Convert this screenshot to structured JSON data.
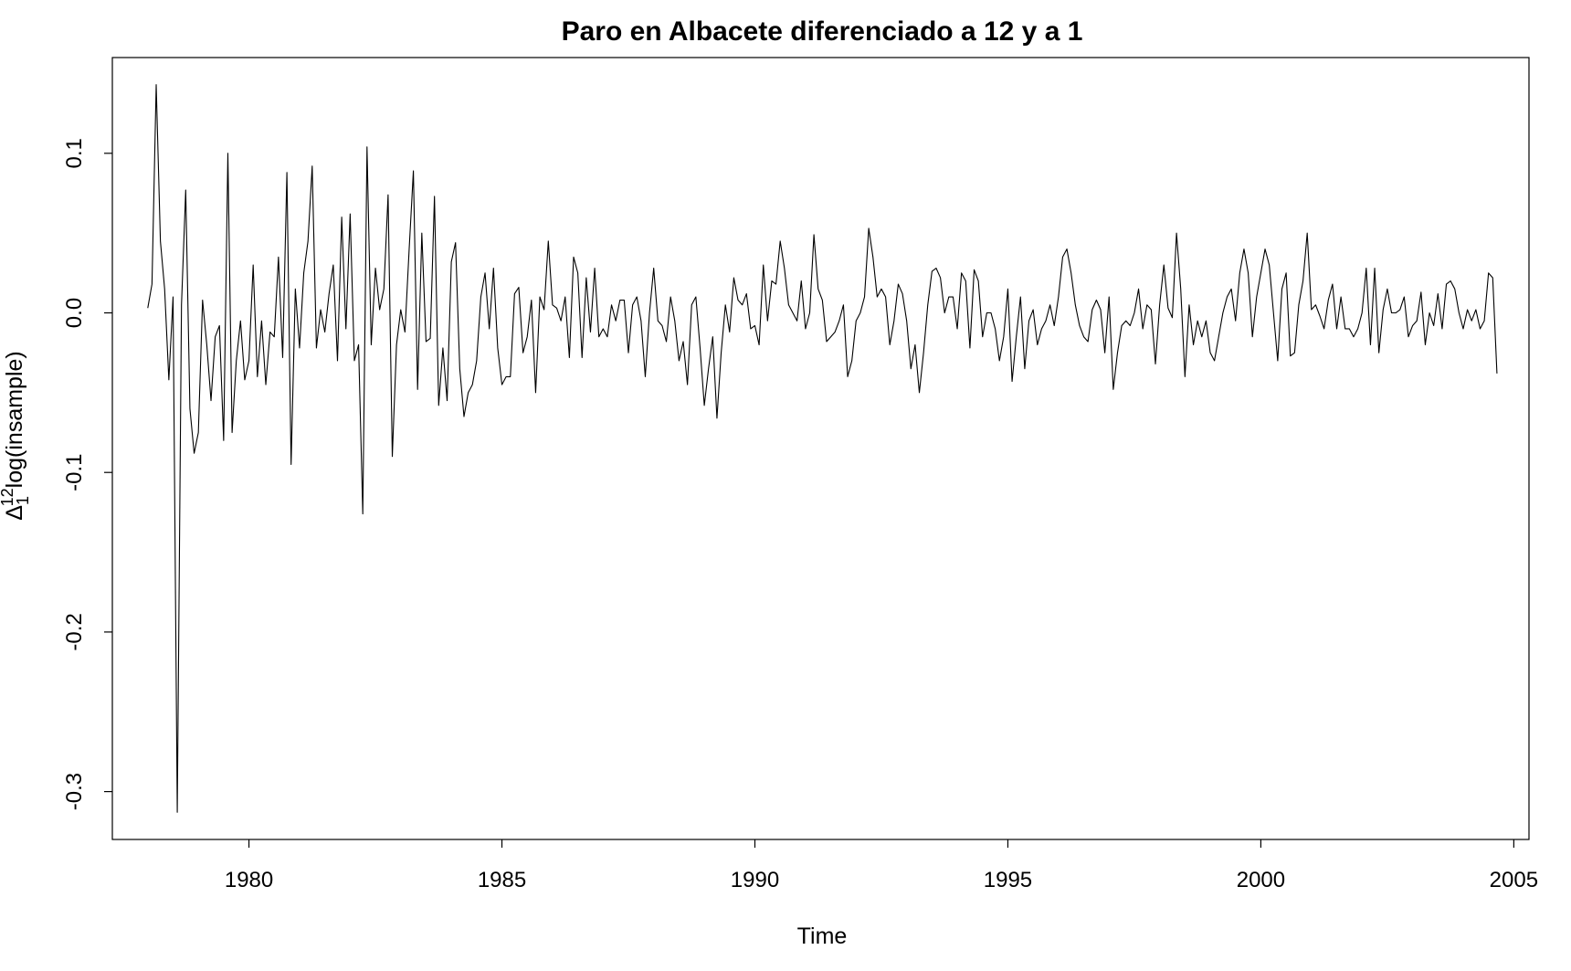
{
  "chart_data": {
    "type": "line",
    "title": "Paro en Albacete diferenciado a 12 y a 1",
    "xlabel": "Time",
    "ylabel": {
      "prefix": "Δ",
      "sub": "1",
      "sup": "12",
      "rest": "log(insample)"
    },
    "xlim": [
      1977.3,
      2005.3
    ],
    "ylim": [
      -0.33,
      0.16
    ],
    "x_ticks": [
      1980,
      1985,
      1990,
      1995,
      2000,
      2005
    ],
    "x_tick_labels": [
      "1980",
      "1985",
      "1990",
      "1995",
      "2000",
      "2005"
    ],
    "y_ticks": [
      -0.3,
      -0.2,
      -0.1,
      0.0,
      0.1
    ],
    "y_tick_labels": [
      "-0.3",
      "-0.2",
      "-0.1",
      "0.0",
      "0.1"
    ],
    "grid": false,
    "series": [
      {
        "line_color": "#000000",
        "start": 1978.0,
        "frequency": 12,
        "values": [
          0.003,
          0.018,
          0.143,
          0.045,
          0.015,
          -0.042,
          0.01,
          -0.313,
          0.005,
          0.077,
          -0.06,
          -0.088,
          -0.075,
          0.008,
          -0.02,
          -0.055,
          -0.015,
          -0.008,
          -0.08,
          0.1,
          -0.075,
          -0.03,
          -0.005,
          -0.042,
          -0.03,
          0.03,
          -0.04,
          -0.005,
          -0.045,
          -0.012,
          -0.015,
          0.035,
          -0.028,
          0.088,
          -0.095,
          0.015,
          -0.022,
          0.025,
          0.045,
          0.092,
          -0.022,
          0.002,
          -0.012,
          0.012,
          0.03,
          -0.03,
          0.06,
          -0.01,
          0.062,
          -0.03,
          -0.02,
          -0.126,
          0.104,
          -0.02,
          0.028,
          0.002,
          0.015,
          0.074,
          -0.09,
          -0.02,
          0.002,
          -0.012,
          0.04,
          0.089,
          -0.048,
          0.05,
          -0.018,
          -0.016,
          0.073,
          -0.058,
          -0.022,
          -0.055,
          0.032,
          0.044,
          -0.035,
          -0.065,
          -0.05,
          -0.045,
          -0.03,
          0.01,
          0.025,
          -0.01,
          0.028,
          -0.022,
          -0.045,
          -0.04,
          -0.04,
          0.012,
          0.016,
          -0.025,
          -0.015,
          0.008,
          -0.05,
          0.01,
          0.002,
          0.045,
          0.005,
          0.003,
          -0.005,
          0.01,
          -0.028,
          0.035,
          0.025,
          -0.028,
          0.022,
          -0.012,
          0.028,
          -0.015,
          -0.01,
          -0.015,
          0.005,
          -0.005,
          0.008,
          0.008,
          -0.025,
          0.005,
          0.01,
          -0.005,
          -0.04,
          0.0,
          0.028,
          -0.005,
          -0.008,
          -0.018,
          0.01,
          -0.005,
          -0.03,
          -0.018,
          -0.045,
          0.005,
          0.01,
          -0.022,
          -0.058,
          -0.035,
          -0.015,
          -0.066,
          -0.025,
          0.005,
          -0.012,
          0.022,
          0.008,
          0.005,
          0.012,
          -0.01,
          -0.008,
          -0.02,
          0.03,
          -0.005,
          0.02,
          0.018,
          0.045,
          0.028,
          0.005,
          0.0,
          -0.005,
          0.02,
          -0.01,
          0.0,
          0.049,
          0.015,
          0.008,
          -0.018,
          -0.015,
          -0.012,
          -0.005,
          0.005,
          -0.04,
          -0.03,
          -0.005,
          0.0,
          0.01,
          0.053,
          0.035,
          0.01,
          0.015,
          0.01,
          -0.02,
          -0.005,
          0.018,
          0.012,
          -0.005,
          -0.035,
          -0.02,
          -0.05,
          -0.025,
          0.005,
          0.026,
          0.028,
          0.022,
          0.0,
          0.01,
          0.01,
          -0.01,
          0.025,
          0.02,
          -0.022,
          0.027,
          0.02,
          -0.015,
          0.0,
          0.0,
          -0.01,
          -0.03,
          -0.015,
          0.015,
          -0.043,
          -0.015,
          0.01,
          -0.035,
          -0.005,
          0.002,
          -0.02,
          -0.01,
          -0.005,
          0.005,
          -0.008,
          0.01,
          0.035,
          0.04,
          0.025,
          0.005,
          -0.008,
          -0.015,
          -0.018,
          0.002,
          0.008,
          0.002,
          -0.025,
          0.01,
          -0.048,
          -0.025,
          -0.008,
          -0.005,
          -0.008,
          0.0,
          0.015,
          -0.01,
          0.005,
          0.002,
          -0.032,
          0.005,
          0.03,
          0.003,
          -0.003,
          0.05,
          0.015,
          -0.04,
          0.005,
          -0.02,
          -0.005,
          -0.015,
          -0.005,
          -0.025,
          -0.03,
          -0.015,
          0.0,
          0.01,
          0.015,
          -0.005,
          0.025,
          0.04,
          0.025,
          -0.015,
          0.01,
          0.025,
          0.04,
          0.03,
          0.0,
          -0.03,
          0.015,
          0.025,
          -0.027,
          -0.025,
          0.005,
          0.02,
          0.05,
          0.002,
          0.005,
          -0.002,
          -0.01,
          0.008,
          0.018,
          -0.01,
          0.01,
          -0.01,
          -0.01,
          -0.015,
          -0.01,
          0.0,
          0.028,
          -0.02,
          0.028,
          -0.025,
          0.002,
          0.015,
          0.0,
          0.0,
          0.002,
          0.01,
          -0.015,
          -0.008,
          -0.005,
          0.013,
          -0.02,
          0.0,
          -0.008,
          0.012,
          -0.01,
          0.018,
          0.02,
          0.015,
          0.0,
          -0.01,
          0.002,
          -0.005,
          0.002,
          -0.01,
          -0.005,
          0.025,
          0.022,
          -0.038
        ]
      }
    ]
  }
}
